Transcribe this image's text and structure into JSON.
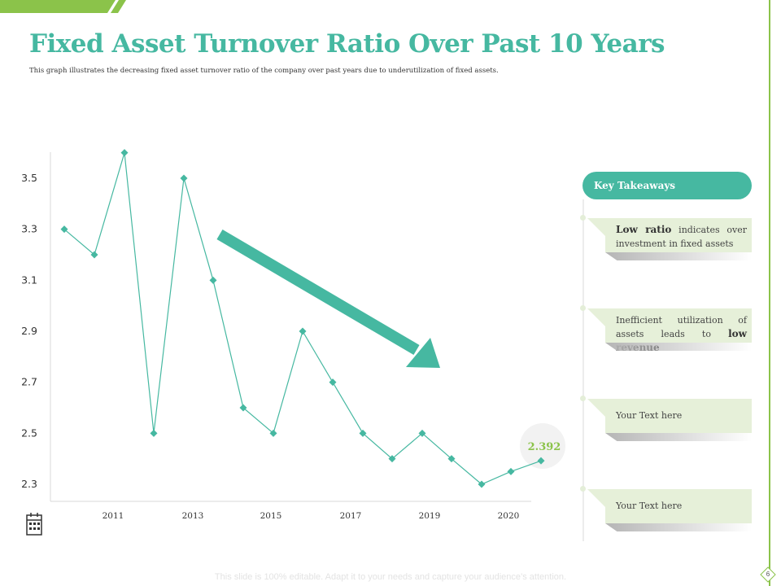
{
  "slide": {
    "title": "Fixed Asset Turnover Ratio Over Past 10 Years",
    "subtitle": "This graph illustrates the decreasing fixed asset turnover ratio of the company over past years due to underutilization of fixed assets.",
    "footer": "This slide is 100% editable. Adapt it to your needs and capture your audience’s attention.",
    "page_number": "6",
    "accent_color": "#46b8a1",
    "green_color": "#8bc34a"
  },
  "chart_data": {
    "type": "line",
    "x_tick_labels": [
      "2011",
      "2013",
      "2015",
      "2017",
      "2019",
      "2020"
    ],
    "yticks": [
      "3.5",
      "3.3",
      "3.1",
      "2.9",
      "2.7",
      "2.5",
      "2.3"
    ],
    "ylim": [
      2.3,
      3.6
    ],
    "series": [
      {
        "values": [
          3.3,
          3.2,
          3.6,
          2.5,
          3.5,
          3.1,
          2.6,
          2.5,
          2.9,
          2.7,
          2.5,
          2.4,
          2.5,
          2.4,
          2.3,
          2.35,
          2.392
        ]
      }
    ],
    "callout_value": "2.392",
    "trend": "decreasing",
    "grid": false,
    "line_color": "#46b8a1"
  },
  "takeaways": {
    "header": "Key Takeaways",
    "items": [
      {
        "bold": "Low ratio",
        "text": " indicates over investment in fixed assets"
      },
      {
        "text": "Inefficient utilization of assets leads to ",
        "bold": "low revenue"
      },
      {
        "text": "Your Text here"
      },
      {
        "text": "Your Text here"
      }
    ]
  },
  "icons": {
    "calendar": "calendar-icon"
  }
}
